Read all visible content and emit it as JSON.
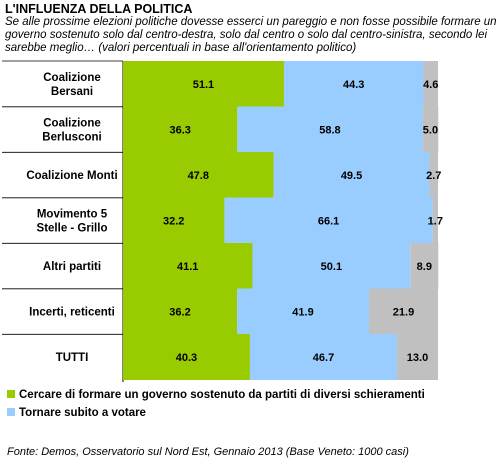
{
  "title": "L'INFLUENZA DELLA POLITICA",
  "subtitle": "Se alle prossime elezioni politiche dovesse esserci un pareggio e non fosse possibile formare un governo sostenuto solo dal centro-destra, solo dal centro o solo dal centro-sinistra, secondo lei sarebbe meglio… (valori percentuali in base all'orientamento politico)",
  "source": "Fonte: Demos, Osservatorio sul Nord Est, Gennaio 2013 (Base Veneto: 1000 casi)",
  "colors": {
    "green": "#99cc00",
    "blue": "#99ccff",
    "grey": "#c0c0c0"
  },
  "chart_data": {
    "type": "bar",
    "orientation": "horizontal",
    "stacked": "100%",
    "categories": [
      [
        "Coalizione",
        "Bersani"
      ],
      [
        "Coalizione",
        "Berlusconi"
      ],
      [
        "Coalizione Monti"
      ],
      [
        "Movimento 5",
        "Stelle - Grillo"
      ],
      [
        "Altri partiti"
      ],
      [
        "Incerti, reticenti"
      ],
      [
        "TUTTI"
      ]
    ],
    "series": [
      {
        "name": "Cercare di formare un governo sostenuto da partiti di diversi schieramenti",
        "color": "#99cc00",
        "values": [
          51.1,
          36.3,
          47.8,
          32.2,
          41.1,
          36.2,
          40.3
        ]
      },
      {
        "name": "Tornare subito a votare",
        "color": "#99ccff",
        "values": [
          44.3,
          58.8,
          49.5,
          66.1,
          50.1,
          41.9,
          46.7
        ]
      },
      {
        "name": "",
        "color": "#c0c0c0",
        "values": [
          4.6,
          5.0,
          2.7,
          1.7,
          8.9,
          21.9,
          13.0
        ]
      }
    ],
    "legend_position": "bottom",
    "xlim": [
      0,
      100
    ]
  }
}
